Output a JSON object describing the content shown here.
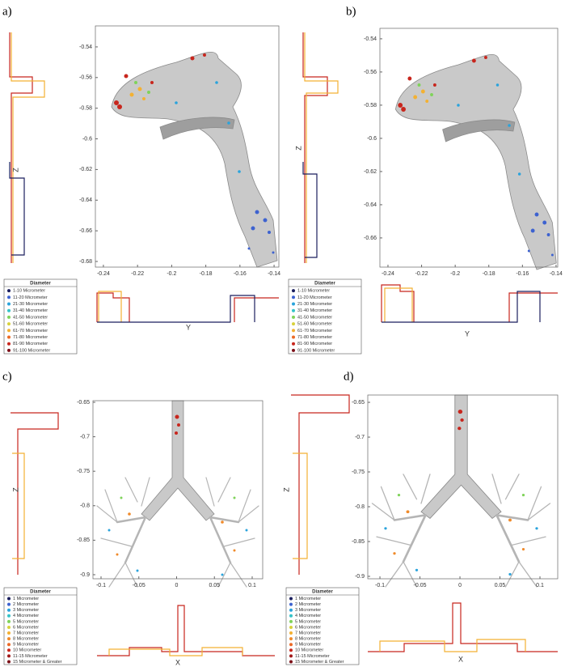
{
  "chart_data": [
    {
      "type": "scatter",
      "label": "a)",
      "xlabel": "Y",
      "ylabel": "Z",
      "xlim": [
        -0.2447,
        -0.1372
      ],
      "xticks": [
        -0.24,
        -0.22,
        -0.2,
        -0.18,
        -0.16,
        -0.14
      ],
      "ylim": [
        -0.6837,
        -0.5263
      ],
      "yticks": [
        -0.54,
        -0.56,
        -0.58,
        -0.6,
        -0.62,
        -0.64,
        -0.66,
        -0.68
      ],
      "legend_title": "Diameter",
      "series": [
        {
          "name": "1-10 Micrometer",
          "color": "#1b1f5e"
        },
        {
          "name": "11-20 Micrometer",
          "color": "#3d62d0"
        },
        {
          "name": "21-30 Micrometer",
          "color": "#2aa3dc"
        },
        {
          "name": "31-40 Micrometer",
          "color": "#35c3c8"
        },
        {
          "name": "41-50 Micrometer",
          "color": "#7fd35a"
        },
        {
          "name": "51-60 Micrometer",
          "color": "#d8d23c"
        },
        {
          "name": "61-70 Micrometer",
          "color": "#f3b133"
        },
        {
          "name": "71-80 Micrometer",
          "color": "#ec6a26"
        },
        {
          "name": "81-90 Micrometer",
          "color": "#c8261d"
        },
        {
          "name": "91-100 Micrometer",
          "color": "#7c1018"
        }
      ]
    },
    {
      "type": "scatter",
      "label": "b)",
      "xlabel": "Y",
      "ylabel": "Z",
      "xlim": [
        -0.2448,
        -0.139
      ],
      "xticks": [
        -0.24,
        -0.22,
        -0.2,
        -0.18,
        -0.16,
        -0.14
      ],
      "ylim": [
        -0.6776,
        -0.5337
      ],
      "yticks": [
        -0.54,
        -0.56,
        -0.58,
        -0.6,
        -0.62,
        -0.64,
        -0.66
      ],
      "legend_title": "Diameter",
      "series": [
        {
          "name": "1-10 Micrometer",
          "color": "#1b1f5e"
        },
        {
          "name": "11-20 Micrometer",
          "color": "#3d62d0"
        },
        {
          "name": "21-30 Micrometer",
          "color": "#2aa3dc"
        },
        {
          "name": "31-40 Micrometer",
          "color": "#35c3c8"
        },
        {
          "name": "41-50 Micrometer",
          "color": "#7fd35a"
        },
        {
          "name": "51-60 Micrometer",
          "color": "#d8d23c"
        },
        {
          "name": "61-70 Micrometer",
          "color": "#f3b133"
        },
        {
          "name": "71-80 Micrometer",
          "color": "#ec6a26"
        },
        {
          "name": "81-90 Micrometer",
          "color": "#c8261d"
        },
        {
          "name": "91-100 Micrometer",
          "color": "#7c1018"
        }
      ]
    },
    {
      "type": "scatter",
      "label": "c)",
      "xlabel": "X",
      "ylabel": "Z",
      "xlim": [
        -0.1107,
        0.1139
      ],
      "xticks": [
        -0.1,
        -0.05,
        0,
        0.05,
        0.1
      ],
      "ylim": [
        -0.9059,
        -0.6477
      ],
      "yticks": [
        -0.65,
        -0.7,
        -0.75,
        -0.8,
        -0.85,
        -0.9
      ],
      "legend_title": "Diameter",
      "series": [
        {
          "name": "1 Micrometer",
          "color": "#1b1f5e"
        },
        {
          "name": "2 Micrometer",
          "color": "#3d62d0"
        },
        {
          "name": "3 Micrometer",
          "color": "#2aa3dc"
        },
        {
          "name": "4 Micrometer",
          "color": "#35c3c8"
        },
        {
          "name": "5 Micrometer",
          "color": "#7fd35a"
        },
        {
          "name": "6 Micrometer",
          "color": "#d8d23c"
        },
        {
          "name": "7 Micrometer",
          "color": "#f3b133"
        },
        {
          "name": "8 Micrometer",
          "color": "#f08a2a"
        },
        {
          "name": "9 Micrometer",
          "color": "#ec6a26"
        },
        {
          "name": "10 Micrometer",
          "color": "#c8261d"
        },
        {
          "name": "11-15 Micrometer",
          "color": "#a01818"
        },
        {
          "name": "15 Micrometer & Greater",
          "color": "#7c1018"
        }
      ]
    },
    {
      "type": "scatter",
      "label": "d)",
      "xlabel": "X",
      "ylabel": "Z",
      "xlim": [
        -0.1152,
        0.1222
      ],
      "xticks": [
        -0.1,
        -0.05,
        0,
        0.05,
        0.1
      ],
      "ylim": [
        -0.9035,
        -0.6395
      ],
      "yticks": [
        -0.65,
        -0.7,
        -0.75,
        -0.8,
        -0.85,
        -0.9
      ],
      "legend_title": "Diameter",
      "series": [
        {
          "name": "1 Micrometer",
          "color": "#1b1f5e"
        },
        {
          "name": "2 Micrometer",
          "color": "#3d62d0"
        },
        {
          "name": "3 Micrometer",
          "color": "#2aa3dc"
        },
        {
          "name": "4 Micrometer",
          "color": "#35c3c8"
        },
        {
          "name": "5 Micrometer",
          "color": "#7fd35a"
        },
        {
          "name": "6 Micrometer",
          "color": "#d8d23c"
        },
        {
          "name": "7 Micrometer",
          "color": "#f3b133"
        },
        {
          "name": "8 Micrometer",
          "color": "#f08a2a"
        },
        {
          "name": "9 Micrometer",
          "color": "#ec6a26"
        },
        {
          "name": "10 Micrometer",
          "color": "#c8261d"
        },
        {
          "name": "11-15 Micrometer",
          "color": "#a01818"
        },
        {
          "name": "15 Micrometer & Greater",
          "color": "#7c1018"
        }
      ]
    }
  ]
}
